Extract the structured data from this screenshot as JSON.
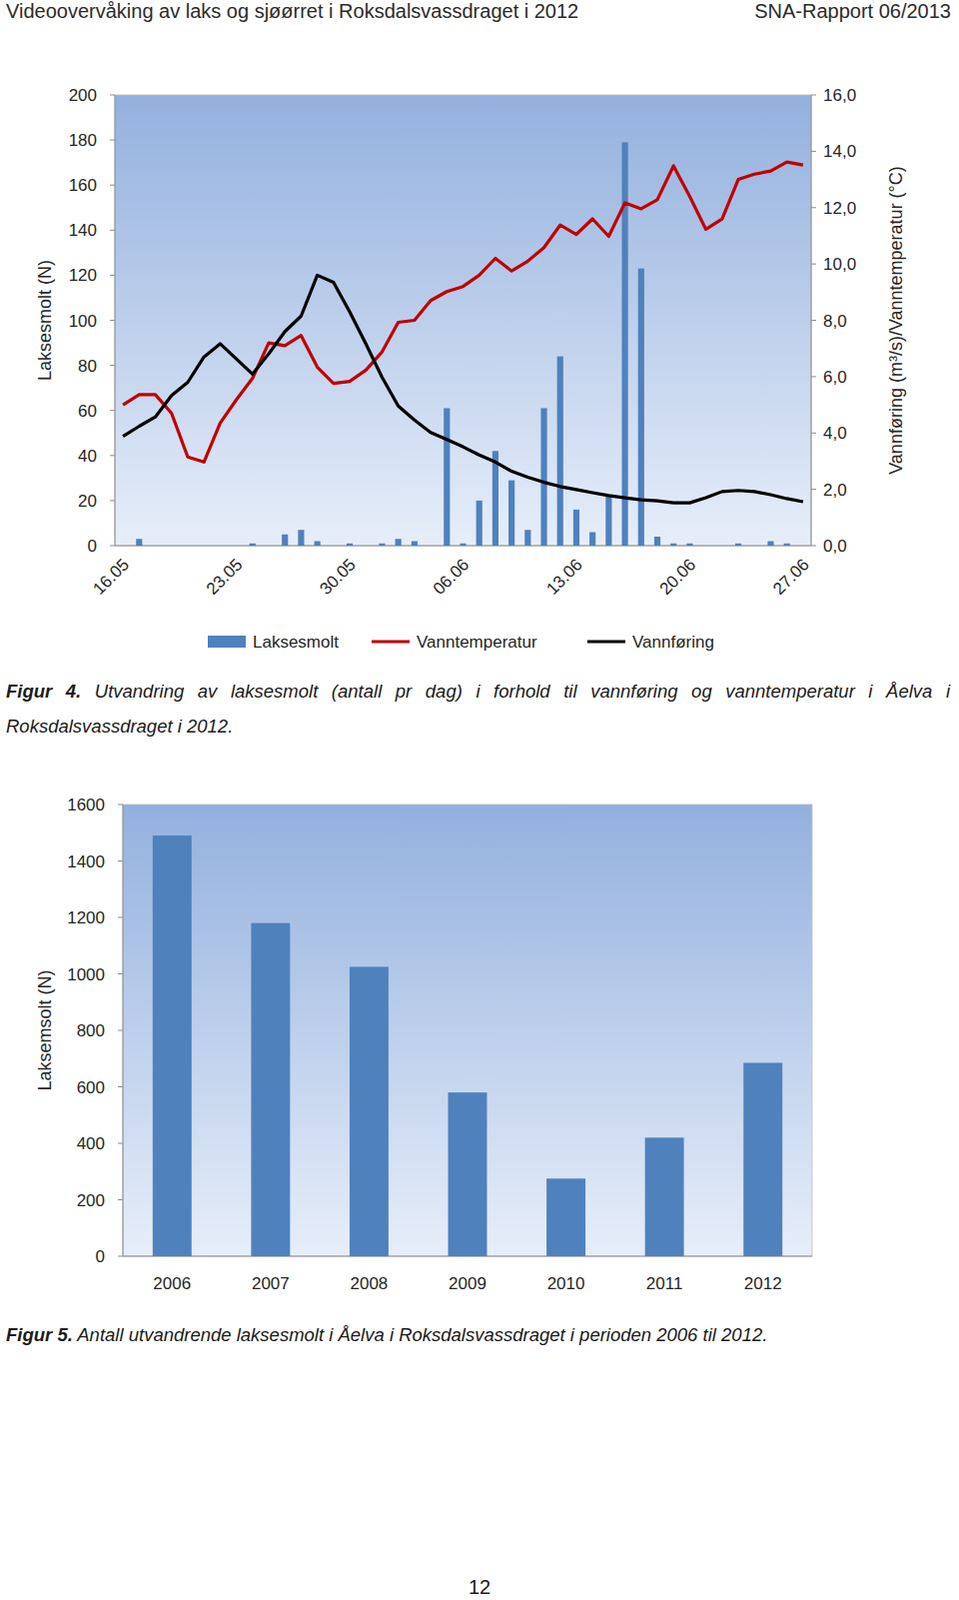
{
  "header": {
    "left": "Videoovervåking av laks og sjøørret i Roksdalsvassdraget i 2012",
    "right": "SNA-Rapport 06/2013"
  },
  "chart_data": [
    {
      "type": "bar",
      "categories": [
        "16.05",
        null,
        null,
        null,
        null,
        null,
        null,
        "23.05",
        null,
        null,
        null,
        null,
        null,
        null,
        "30.05",
        null,
        null,
        null,
        null,
        null,
        null,
        "06.06",
        null,
        null,
        null,
        null,
        null,
        null,
        "13.06",
        null,
        null,
        null,
        null,
        null,
        null,
        "20.06",
        null,
        null,
        null,
        null,
        null,
        null,
        "27.06"
      ],
      "ylabel": "Laksesmolt (N)",
      "y2label": "Vannføring (m³/s)/Vanntemperatur (°C)",
      "ylim": [
        0,
        200
      ],
      "yticks": [
        0,
        20,
        40,
        60,
        80,
        100,
        120,
        140,
        160,
        180,
        200
      ],
      "y2lim": [
        0,
        16
      ],
      "y2ticks": [
        {
          "value": 0,
          "label": "0,0"
        },
        {
          "value": 2,
          "label": "2,0"
        },
        {
          "value": 4,
          "label": "4,0"
        },
        {
          "value": 6,
          "label": "6,0"
        },
        {
          "value": 8,
          "label": "8,0"
        },
        {
          "value": 10,
          "label": "10,0"
        },
        {
          "value": 12,
          "label": "12,0"
        },
        {
          "value": 14,
          "label": "14,0"
        },
        {
          "value": 16,
          "label": "16,0"
        }
      ],
      "grid": false,
      "legend": "bottom",
      "series": [
        {
          "name": "Laksesmolt",
          "type": "bar",
          "color": "#4f81bd",
          "values": [
            0,
            3,
            0,
            0,
            0,
            0,
            0,
            0,
            1,
            0,
            5,
            7,
            2,
            0,
            1,
            0,
            1,
            3,
            2,
            0,
            61,
            1,
            20,
            42,
            29,
            7,
            61,
            84,
            16,
            6,
            22,
            179,
            123,
            4,
            1,
            1,
            0,
            0,
            1,
            0,
            2,
            1,
            0
          ]
        },
        {
          "name": "Vanntemperatur",
          "type": "line",
          "axis": "y2",
          "color": "#c00000",
          "values": [
            5.0,
            5.36,
            5.36,
            4.7,
            3.15,
            2.97,
            4.35,
            5.18,
            5.94,
            7.2,
            7.1,
            7.46,
            6.34,
            5.76,
            5.83,
            6.23,
            6.88,
            7.93,
            8.0,
            8.7,
            9.02,
            9.2,
            9.6,
            10.2,
            9.75,
            10.1,
            10.58,
            11.38,
            11.05,
            11.6,
            10.98,
            12.17,
            11.96,
            12.28,
            13.48,
            12.4,
            11.23,
            11.6,
            13.0,
            13.19,
            13.3,
            13.62,
            13.51
          ]
        },
        {
          "name": "Vannføring",
          "type": "line",
          "axis": "y2",
          "color": "#000000",
          "values": [
            3.88,
            4.24,
            4.57,
            5.33,
            5.8,
            6.7,
            7.17,
            6.63,
            6.09,
            6.81,
            7.6,
            8.15,
            9.6,
            9.35,
            8.3,
            7.17,
            5.98,
            4.96,
            4.46,
            4.02,
            3.77,
            3.51,
            3.22,
            2.97,
            2.64,
            2.43,
            2.25,
            2.1,
            1.99,
            1.88,
            1.78,
            1.7,
            1.63,
            1.59,
            1.52,
            1.52,
            1.7,
            1.92,
            1.96,
            1.92,
            1.81,
            1.67,
            1.56
          ]
        }
      ]
    },
    {
      "type": "bar",
      "categories": [
        "2006",
        "2007",
        "2008",
        "2009",
        "2010",
        "2011",
        "2012"
      ],
      "values": [
        1490,
        1180,
        1025,
        580,
        275,
        420,
        685
      ],
      "color": "#4f81bd",
      "ylabel": "Laksemsolt (N)",
      "ylim": [
        0,
        1600
      ],
      "yticks": [
        0,
        200,
        400,
        600,
        800,
        1000,
        1200,
        1400,
        1600
      ],
      "grid": false
    }
  ],
  "captions": [
    {
      "label": "Figur 4.",
      "text": "Utvandring av laksesmolt (antall pr dag) i forhold til vannføring og vanntemperatur i Åelva i Roksdalsvassdraget i 2012."
    },
    {
      "label": "Figur 5.",
      "text": "Antall utvandrende laksesmolt i Åelva i Roksdalsvassdraget i perioden 2006 til 2012."
    }
  ],
  "page_number": 12
}
